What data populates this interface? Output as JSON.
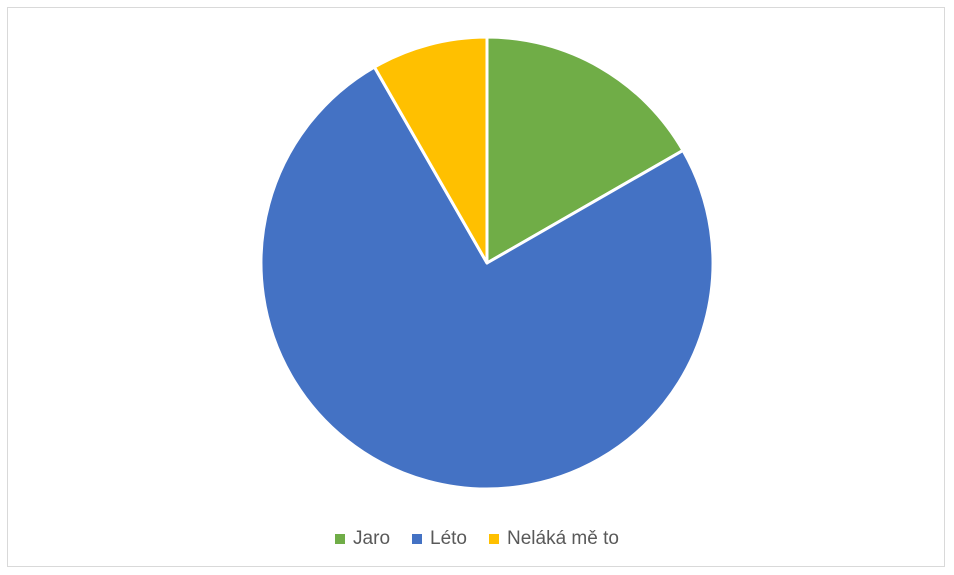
{
  "chart_data": {
    "type": "pie",
    "categories": [
      "Jaro",
      "Léto",
      "Neláká mě to"
    ],
    "values": [
      16.7,
      75.0,
      8.3
    ],
    "colors": [
      "#70ad47",
      "#4472c4",
      "#ffc000"
    ],
    "start_angle_deg": 0,
    "direction": "clockwise",
    "slice_border_color": "#ffffff",
    "legend_position": "bottom"
  }
}
